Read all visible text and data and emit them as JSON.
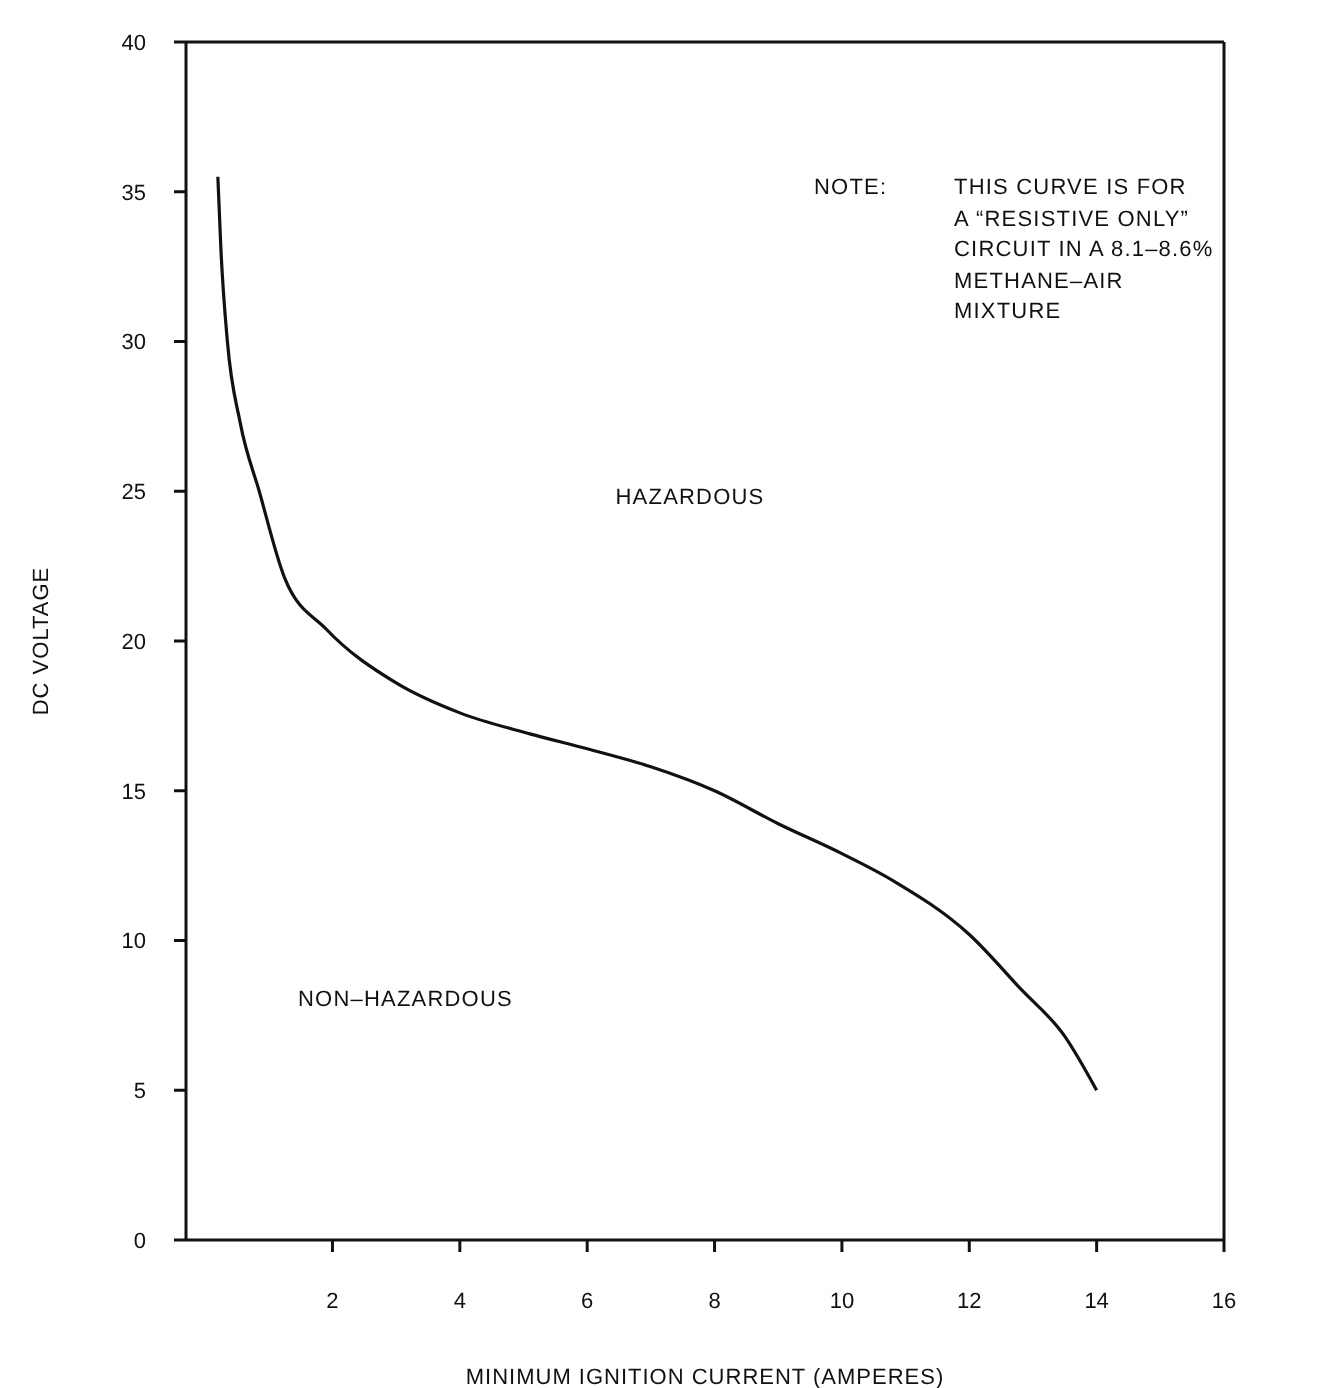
{
  "chart_data": {
    "type": "line",
    "xlabel": "MINIMUM IGNITION CURRENT (AMPERES)",
    "ylabel": "DC VOLTAGE",
    "annotations": [
      "NOTE:",
      "THIS CURVE IS FOR\nA “RESISTIVE ONLY”\nCIRCUIT IN A 8.1–8.6%\nMETHANE–AIR\nMIXTURE",
      "HAZARDOUS",
      "NON–HAZARDOUS"
    ],
    "xlim": [
      -0.3,
      16
    ],
    "xticks": [
      2,
      4,
      6,
      8,
      10,
      12,
      14,
      16
    ],
    "ylim": [
      0,
      40
    ],
    "yticks": [
      0,
      5,
      10,
      15,
      20,
      25,
      30,
      35,
      40
    ],
    "series": [
      {
        "color": "#111111",
        "x": [
          0.2,
          0.25,
          0.35,
          0.55,
          0.85,
          1.25,
          1.9,
          3,
          4,
          5.1,
          6,
          7,
          8,
          9,
          10,
          10.8,
          12,
          12.8,
          13.5,
          14
        ],
        "values": [
          35.5,
          33,
          30,
          27.3,
          25,
          22.1,
          20.4,
          18.6,
          17.6,
          16.9,
          16.4,
          15.8,
          15,
          13.9,
          12.9,
          12,
          10.2,
          8.4,
          6.8,
          5
        ]
      }
    ]
  }
}
